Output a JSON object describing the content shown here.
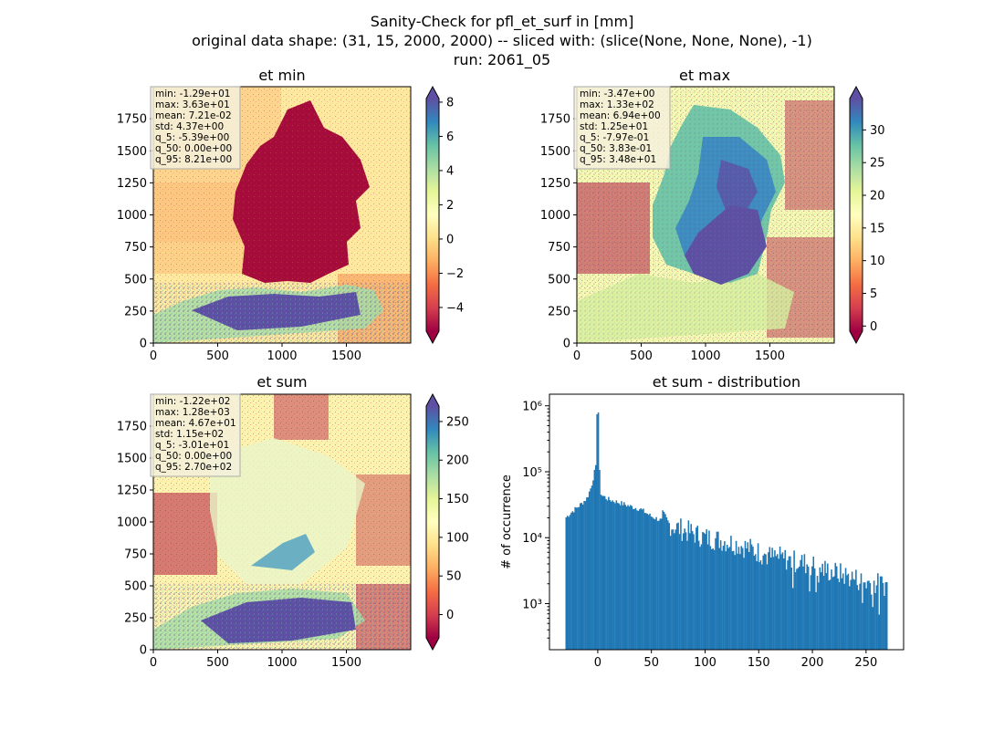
{
  "figure": {
    "title_lines": [
      "Sanity-Check for pfl_et_surf in [mm]",
      "original data shape: (31, 15, 2000, 2000) -- sliced with: (slice(None, None, None), -1)",
      "run: 2061_05"
    ]
  },
  "colors": {
    "hist_bar": "#1f77b4",
    "axis": "#000000",
    "stats_box_fill": "#f5f0dc",
    "stats_box_edge": "#aaaaaa"
  },
  "chart_data": [
    {
      "type": "heatmap",
      "title": "et min",
      "xlim": [
        0,
        2000
      ],
      "ylim": [
        0,
        2000
      ],
      "xticks": [
        0,
        500,
        1000,
        1500
      ],
      "yticks": [
        0,
        250,
        500,
        750,
        1000,
        1250,
        1500,
        1750
      ],
      "colormap": "Spectral",
      "colorbar": {
        "range": [
          -5.39,
          8.21
        ],
        "ticks": [
          -4,
          -2,
          0,
          2,
          4,
          6,
          8
        ],
        "extend": "both"
      },
      "stats": [
        "min: -1.29e+01",
        "max: 3.63e+01",
        "mean: 7.21e-02",
        "std: 4.37e+00",
        "q_5: -5.39e+00",
        "q_50: 0.00e+00",
        "q_95: 8.21e+00"
      ]
    },
    {
      "type": "heatmap",
      "title": "et max",
      "xlim": [
        0,
        2000
      ],
      "ylim": [
        0,
        2000
      ],
      "xticks": [
        0,
        500,
        1000,
        1500
      ],
      "yticks": [
        0,
        250,
        500,
        750,
        1000,
        1250,
        1500,
        1750
      ],
      "colormap": "Spectral",
      "colorbar": {
        "range": [
          -0.797,
          34.8
        ],
        "ticks": [
          0,
          5,
          10,
          15,
          20,
          25,
          30
        ],
        "extend": "both"
      },
      "stats": [
        "min: -3.47e+00",
        "max: 1.33e+02",
        "mean: 6.94e+00",
        "std: 1.25e+01",
        "q_5: -7.97e-01",
        "q_50: 3.83e-01",
        "q_95: 3.48e+01"
      ]
    },
    {
      "type": "heatmap",
      "title": "et sum",
      "xlim": [
        0,
        2000
      ],
      "ylim": [
        0,
        2000
      ],
      "xticks": [
        0,
        500,
        1000,
        1500
      ],
      "yticks": [
        0,
        250,
        500,
        750,
        1000,
        1250,
        1500,
        1750
      ],
      "colormap": "Spectral",
      "colorbar": {
        "range": [
          -30.1,
          270
        ],
        "ticks": [
          0,
          50,
          100,
          150,
          200,
          250
        ],
        "extend": "both"
      },
      "stats": [
        "min: -1.22e+02",
        "max: 1.28e+03",
        "mean: 4.67e+01",
        "std: 1.15e+02",
        "q_5: -3.01e+01",
        "q_50: 0.00e+00",
        "q_95: 2.70e+02"
      ]
    },
    {
      "type": "bar",
      "title": "et sum - distribution",
      "ylabel": "# of occurrence",
      "yscale": "log",
      "xlim": [
        -45,
        285
      ],
      "ylim": [
        200,
        1500000
      ],
      "xticks": [
        0,
        50,
        100,
        150,
        200,
        250
      ],
      "yticks": [
        {
          "value": 1000,
          "label": "10³"
        },
        {
          "value": 10000,
          "label": "10⁴"
        },
        {
          "value": 100000,
          "label": "10⁵"
        },
        {
          "value": 1000000,
          "label": "10⁶"
        }
      ],
      "bin_range": [
        -30.1,
        270
      ],
      "bin_count": 250,
      "profile": [
        [
          -30,
          20000
        ],
        [
          -25,
          24000
        ],
        [
          -20,
          28000
        ],
        [
          -15,
          33000
        ],
        [
          -10,
          40000
        ],
        [
          -6,
          60000
        ],
        [
          -3,
          100000
        ],
        [
          -1,
          130000
        ],
        [
          0,
          800000
        ],
        [
          1,
          150000
        ],
        [
          3,
          45000
        ],
        [
          10,
          38000
        ],
        [
          20,
          34000
        ],
        [
          30,
          30000
        ],
        [
          40,
          27000
        ],
        [
          50,
          21000
        ],
        [
          60,
          18000
        ],
        [
          70,
          15000
        ],
        [
          80,
          13000
        ],
        [
          90,
          11500
        ],
        [
          100,
          10000
        ],
        [
          110,
          9500
        ],
        [
          120,
          8800
        ],
        [
          130,
          8000
        ],
        [
          140,
          7000
        ],
        [
          150,
          6000
        ],
        [
          160,
          5200
        ],
        [
          170,
          5000
        ],
        [
          180,
          4500
        ],
        [
          190,
          4200
        ],
        [
          200,
          3800
        ],
        [
          210,
          3300
        ],
        [
          220,
          3000
        ],
        [
          230,
          2700
        ],
        [
          240,
          2400
        ],
        [
          250,
          2100
        ],
        [
          260,
          2000
        ],
        [
          270,
          1900
        ]
      ]
    }
  ]
}
